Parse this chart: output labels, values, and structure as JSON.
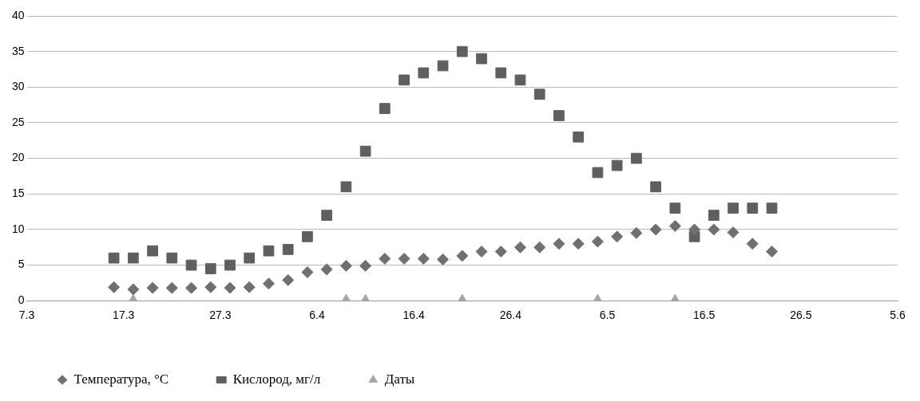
{
  "chart_data": {
    "type": "scatter",
    "x": [
      "--03-16",
      "--03-18",
      "--03-20",
      "--03-22",
      "--03-24",
      "--03-26",
      "--03-28",
      "--03-30",
      "--04-01",
      "--04-03",
      "--04-05",
      "--04-07",
      "--04-09",
      "--04-11",
      "--04-13",
      "--04-15",
      "--04-17",
      "--04-19",
      "--04-21",
      "--04-23",
      "--04-25",
      "--04-27",
      "--04-29",
      "--05-01",
      "--05-03",
      "--05-05",
      "--05-07",
      "--05-09",
      "--05-11",
      "--05-13",
      "--05-15",
      "--05-17",
      "--05-19",
      "--05-21",
      "--05-23"
    ],
    "series": [
      {
        "name": "Температура, °C",
        "color": "#707070",
        "marker": "diamond",
        "values": [
          1.9,
          1.6,
          1.8,
          1.8,
          1.8,
          1.9,
          1.8,
          1.9,
          2.4,
          2.9,
          4.0,
          4.4,
          4.9,
          4.9,
          5.9,
          5.9,
          5.9,
          5.8,
          6.3,
          6.9,
          6.9,
          7.5,
          7.5,
          8.0,
          8.0,
          8.3,
          9.0,
          9.5,
          10.0,
          10.5,
          10.0,
          10.0,
          9.6,
          8.0,
          6.9
        ]
      },
      {
        "name": "Кислород, мг/л",
        "color": "#5f5f5f",
        "marker": "square",
        "values": [
          6,
          6,
          7,
          6,
          5,
          4.5,
          5,
          6,
          7,
          7.2,
          9,
          12,
          16,
          21,
          27,
          31,
          32,
          33,
          35,
          34,
          32,
          31,
          29,
          26,
          23,
          18,
          19,
          20,
          16,
          13,
          9,
          12,
          13,
          13,
          13
        ]
      },
      {
        "name": "Даты",
        "color": "#a6a6a6",
        "marker": "triangle",
        "x": [
          "--03-18",
          "--04-09",
          "--04-11",
          "--04-21",
          "--05-05",
          "--05-13"
        ],
        "values": [
          0,
          0,
          0,
          0,
          0,
          0
        ]
      }
    ],
    "xlim": [
      "--03-07",
      "--06-05"
    ],
    "xticks": [
      {
        "value": "--03-07",
        "label": "7.3"
      },
      {
        "value": "--03-17",
        "label": "17.3"
      },
      {
        "value": "--03-27",
        "label": "27.3"
      },
      {
        "value": "--04-06",
        "label": "6.4"
      },
      {
        "value": "--04-16",
        "label": "16.4"
      },
      {
        "value": "--04-26",
        "label": "26.4"
      },
      {
        "value": "--05-06",
        "label": "6.5"
      },
      {
        "value": "--05-16",
        "label": "16.5"
      },
      {
        "value": "--05-26",
        "label": "26.5"
      },
      {
        "value": "--06-05",
        "label": "5.6"
      }
    ],
    "ylim": [
      0,
      40
    ],
    "yticks": [
      0,
      5,
      10,
      15,
      20,
      25,
      30,
      35,
      40
    ],
    "grid": "y",
    "legend": "bottom left"
  }
}
